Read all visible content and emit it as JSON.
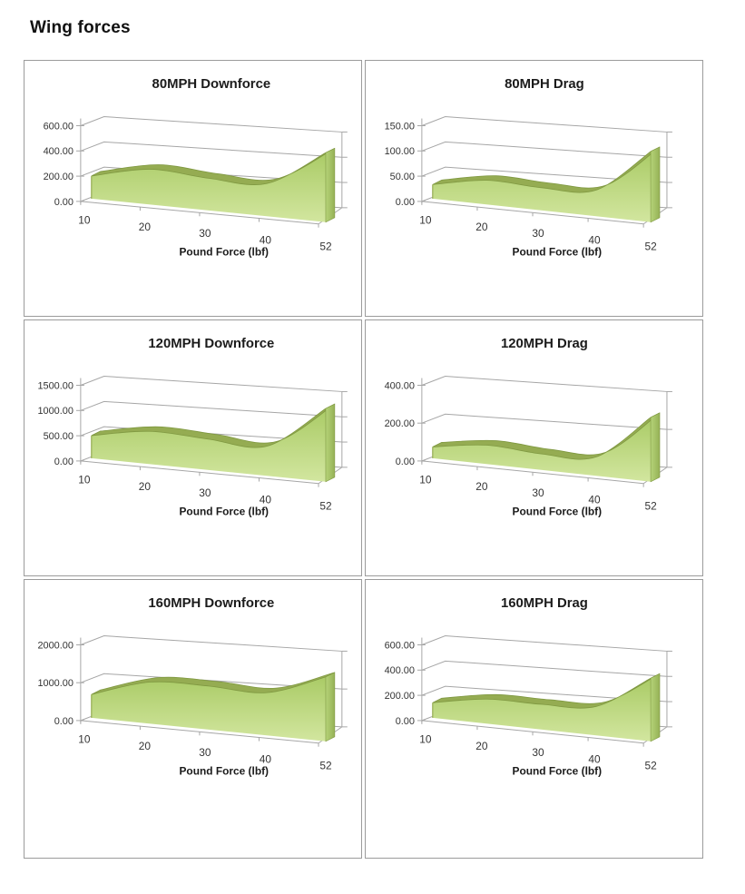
{
  "page": {
    "title": "Wing forces",
    "background": "#ffffff"
  },
  "colors": {
    "panel_border": "#9b9b9b",
    "gridline": "#a6a6a6",
    "tick_text": "#333333",
    "title_text": "#1b1b1b",
    "area_face_top": "#aacb66",
    "area_face_bottom": "#d2e69f",
    "area_band": "#95ac52",
    "area_band_edge": "#7f9841",
    "area_cap_light": "#b5d378",
    "area_cap_dark": "#95b156"
  },
  "chart_data": [
    {
      "type": "area",
      "projection": "3d",
      "title": "80MPH Downforce",
      "xlabel": "Pound Force (lbf)",
      "categories": [
        10,
        20,
        30,
        40,
        52
      ],
      "values": [
        180,
        280,
        255,
        260,
        550
      ],
      "y_ticks": [
        "0.00",
        "200.00",
        "400.00",
        "600.00"
      ],
      "ylim": [
        0,
        600
      ],
      "grid": true,
      "legend": false
    },
    {
      "type": "area",
      "projection": "3d",
      "title": "80MPH Drag",
      "xlabel": "Pound Force (lbf)",
      "categories": [
        10,
        20,
        30,
        40,
        52
      ],
      "values": [
        28,
        48,
        45,
        52,
        140
      ],
      "y_ticks": [
        "0.00",
        "50.00",
        "100.00",
        "150.00"
      ],
      "ylim": [
        0,
        150
      ],
      "grid": true,
      "legend": false
    },
    {
      "type": "area",
      "projection": "3d",
      "title": "120MPH Downforce",
      "xlabel": "Pound Force (lbf)",
      "categories": [
        10,
        20,
        30,
        40,
        52
      ],
      "values": [
        450,
        650,
        610,
        590,
        1450
      ],
      "y_ticks": [
        "0.00",
        "500.00",
        "1000.00",
        "1500.00"
      ],
      "ylim": [
        0,
        1500
      ],
      "grid": true,
      "legend": false
    },
    {
      "type": "area",
      "projection": "3d",
      "title": "120MPH Drag",
      "xlabel": "Pound Force (lbf)",
      "categories": [
        10,
        20,
        30,
        40,
        52
      ],
      "values": [
        60,
        100,
        85,
        100,
        340
      ],
      "y_ticks": [
        "0.00",
        "200.00",
        "400.00"
      ],
      "ylim": [
        0,
        400
      ],
      "grid": true,
      "legend": false
    },
    {
      "type": "area",
      "projection": "3d",
      "title": "160MPH Downforce",
      "xlabel": "Pound Force (lbf)",
      "categories": [
        10,
        20,
        30,
        40,
        52
      ],
      "values": [
        620,
        1100,
        1150,
        1130,
        1700
      ],
      "y_ticks": [
        "0.00",
        "1000.00",
        "2000.00"
      ],
      "ylim": [
        0,
        2000
      ],
      "grid": true,
      "legend": false
    },
    {
      "type": "area",
      "projection": "3d",
      "title": "160MPH Drag",
      "xlabel": "Pound Force (lbf)",
      "categories": [
        10,
        20,
        30,
        40,
        52
      ],
      "values": [
        120,
        195,
        200,
        230,
        500
      ],
      "y_ticks": [
        "0.00",
        "200.00",
        "400.00",
        "600.00"
      ],
      "ylim": [
        0,
        600
      ],
      "grid": true,
      "legend": false
    }
  ]
}
